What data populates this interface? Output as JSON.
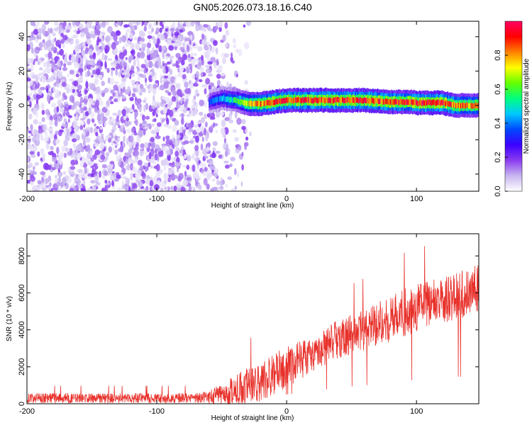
{
  "chart_data": [
    {
      "type": "heatmap",
      "title": "GN05.2026.073.18.16.C40",
      "xlabel": "Height of straight line (km)",
      "ylabel": "Frequency (Hz)",
      "xlim": [
        -200,
        148
      ],
      "ylim": [
        -50,
        49
      ],
      "xticks": [
        -200,
        -100,
        0,
        100
      ],
      "xtick_labels": [
        "-200",
        "-100",
        "0",
        "100"
      ],
      "yticks": [
        -40,
        -20,
        0,
        20,
        40
      ],
      "ytick_labels": [
        "-40",
        "-20",
        "0",
        "20",
        "40"
      ],
      "colorbar": {
        "label": "Normalized spectral amplitude",
        "range": [
          0,
          1
        ],
        "ticks": [
          0.0,
          0.2,
          0.4,
          0.6,
          0.8
        ],
        "tick_labels": [
          "0.0",
          "0.2",
          "0.4",
          "0.6",
          "0.8"
        ],
        "colormap": [
          "#ffffff",
          "#c8b6f0",
          "#8a3cf0",
          "#3c00ff",
          "#0048ff",
          "#00c8ff",
          "#00ff80",
          "#64ff00",
          "#ffff00",
          "#ff8000",
          "#ff0000",
          "#ff0064"
        ]
      },
      "noise_region_x": [
        -200,
        -40
      ],
      "noise_amplitude": 0.2,
      "signal_band": {
        "x": [
          -60,
          -50,
          -40,
          -30,
          -20,
          -10,
          0,
          20,
          40,
          60,
          80,
          96,
          100,
          120,
          130,
          148
        ],
        "center_freq": [
          2,
          4,
          3,
          1,
          1,
          2,
          3,
          3,
          3,
          3,
          2,
          2,
          1.5,
          1.5,
          0,
          0
        ],
        "amplitude": [
          0.35,
          0.45,
          0.55,
          0.75,
          0.85,
          0.9,
          0.9,
          0.92,
          0.92,
          0.92,
          0.9,
          0.9,
          0.95,
          0.95,
          0.85,
          0.8
        ]
      }
    },
    {
      "type": "line",
      "xlabel": "Height of straight line (km)",
      "ylabel": "SNR (10 * v/v)",
      "xlim": [
        -200,
        148
      ],
      "ylim": [
        0,
        9200
      ],
      "xticks": [
        -200,
        -100,
        0,
        100
      ],
      "xtick_labels": [
        "-200",
        "-100",
        "0",
        "100"
      ],
      "yticks": [
        0,
        2000,
        4000,
        6000,
        8000
      ],
      "ytick_labels": [
        "0",
        "2000",
        "4000",
        "6000",
        "8000"
      ],
      "series": [
        {
          "name": "SNR",
          "color": "#e8302a",
          "trend_x": [
            -200,
            -70,
            -60,
            -40,
            -20,
            0,
            20,
            40,
            60,
            80,
            100,
            120,
            140,
            148
          ],
          "trend_y": [
            300,
            300,
            350,
            700,
            1200,
            2000,
            2700,
            3500,
            4000,
            4600,
            5200,
            5600,
            6000,
            6300
          ],
          "noise_fraction": [
            0.9,
            0.9,
            1.0,
            1.2,
            0.9,
            0.55,
            0.35,
            0.3,
            0.28,
            0.28,
            0.25,
            0.22,
            0.22,
            0.22
          ]
        }
      ]
    }
  ]
}
